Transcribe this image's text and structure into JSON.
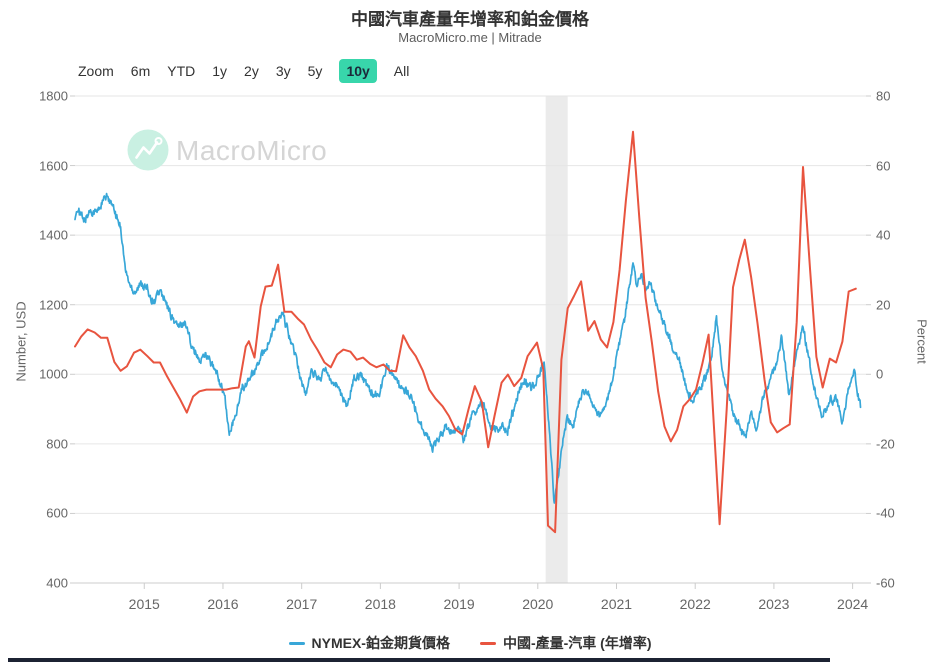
{
  "header": {
    "title": "中國汽車產量年增率和鉑金價格",
    "subtitle": "MacroMicro.me | Mitrade"
  },
  "toolbar": {
    "zoom_label": "Zoom",
    "ranges": [
      "6m",
      "YTD",
      "1y",
      "2y",
      "3y",
      "5y",
      "10y",
      "All"
    ],
    "active_range": "10y"
  },
  "watermark": {
    "text": "MacroMicro",
    "icon": "macromicro-logo"
  },
  "colors": {
    "active_range_bg": "#38d6ab",
    "watermark_circle": "#c9f0e2",
    "watermark_text": "#d5d5d5",
    "grid": "#e6e6e6",
    "tick": "#cccccc",
    "axis_text": "#666666",
    "plot_band": "#ebebeb",
    "footer_bar": "#1c2333"
  },
  "chart_data": {
    "type": "line",
    "title": "中國汽車產量年增率和鉑金價格",
    "subtitle": "MacroMicro.me | Mitrade",
    "grid": true,
    "legend_position": "bottom",
    "x_axis": {
      "min": 2014.12,
      "max": 2024.17,
      "ticks": [
        2015,
        2016,
        2017,
        2018,
        2019,
        2020,
        2021,
        2022,
        2023,
        2024
      ]
    },
    "left_axis": {
      "title": "Number, USD",
      "min": 400,
      "max": 1800,
      "tick_step": 200
    },
    "right_axis": {
      "title": "Percent",
      "min": -60,
      "max": 80,
      "tick_step": 20
    },
    "plot_band": {
      "from": 2020.1,
      "to": 2020.38,
      "note": "recession shading"
    },
    "series": [
      {
        "name": "NYMEX-鉑金期貨價格",
        "color": "#38a7d8",
        "axis": "left",
        "style": "noisy-daily",
        "points": [
          [
            2014.12,
            1445
          ],
          [
            2014.17,
            1477
          ],
          [
            2014.23,
            1438
          ],
          [
            2014.31,
            1470
          ],
          [
            2014.4,
            1466
          ],
          [
            2014.48,
            1500
          ],
          [
            2014.54,
            1510
          ],
          [
            2014.62,
            1468
          ],
          [
            2014.7,
            1424
          ],
          [
            2014.76,
            1300
          ],
          [
            2014.82,
            1255
          ],
          [
            2014.88,
            1238
          ],
          [
            2014.97,
            1262
          ],
          [
            2015.05,
            1238
          ],
          [
            2015.12,
            1205
          ],
          [
            2015.2,
            1242
          ],
          [
            2015.28,
            1200
          ],
          [
            2015.36,
            1160
          ],
          [
            2015.44,
            1135
          ],
          [
            2015.52,
            1150
          ],
          [
            2015.61,
            1080
          ],
          [
            2015.7,
            1035
          ],
          [
            2015.78,
            1062
          ],
          [
            2015.87,
            1022
          ],
          [
            2015.95,
            985
          ],
          [
            2016.02,
            940
          ],
          [
            2016.08,
            825
          ],
          [
            2016.16,
            880
          ],
          [
            2016.24,
            956
          ],
          [
            2016.33,
            988
          ],
          [
            2016.42,
            1014
          ],
          [
            2016.51,
            1062
          ],
          [
            2016.6,
            1100
          ],
          [
            2016.68,
            1150
          ],
          [
            2016.76,
            1172
          ],
          [
            2016.83,
            1118
          ],
          [
            2016.9,
            1070
          ],
          [
            2016.97,
            1005
          ],
          [
            2017.05,
            940
          ],
          [
            2017.13,
            1014
          ],
          [
            2017.22,
            985
          ],
          [
            2017.31,
            1014
          ],
          [
            2017.4,
            976
          ],
          [
            2017.49,
            956
          ],
          [
            2017.57,
            908
          ],
          [
            2017.66,
            985
          ],
          [
            2017.75,
            1005
          ],
          [
            2017.84,
            966
          ],
          [
            2017.92,
            940
          ],
          [
            2018.0,
            952
          ],
          [
            2018.08,
            1030
          ],
          [
            2018.17,
            995
          ],
          [
            2018.25,
            962
          ],
          [
            2018.33,
            955
          ],
          [
            2018.42,
            918
          ],
          [
            2018.5,
            862
          ],
          [
            2018.58,
            832
          ],
          [
            2018.67,
            788
          ],
          [
            2018.75,
            820
          ],
          [
            2018.83,
            850
          ],
          [
            2018.91,
            832
          ],
          [
            2018.99,
            850
          ],
          [
            2019.06,
            815
          ],
          [
            2019.15,
            870
          ],
          [
            2019.23,
            900
          ],
          [
            2019.31,
            918
          ],
          [
            2019.38,
            860
          ],
          [
            2019.46,
            835
          ],
          [
            2019.54,
            850
          ],
          [
            2019.61,
            833
          ],
          [
            2019.69,
            898
          ],
          [
            2019.77,
            962
          ],
          [
            2019.85,
            985
          ],
          [
            2019.92,
            956
          ],
          [
            2020.0,
            995
          ],
          [
            2020.08,
            1035
          ],
          [
            2020.14,
            862
          ],
          [
            2020.21,
            630
          ],
          [
            2020.29,
            762
          ],
          [
            2020.37,
            878
          ],
          [
            2020.45,
            850
          ],
          [
            2020.53,
            928
          ],
          [
            2020.61,
            956
          ],
          [
            2020.7,
            906
          ],
          [
            2020.78,
            878
          ],
          [
            2020.86,
            907
          ],
          [
            2020.94,
            976
          ],
          [
            2021.02,
            1070
          ],
          [
            2021.1,
            1150
          ],
          [
            2021.16,
            1250
          ],
          [
            2021.21,
            1320
          ],
          [
            2021.26,
            1252
          ],
          [
            2021.31,
            1286
          ],
          [
            2021.37,
            1240
          ],
          [
            2021.44,
            1262
          ],
          [
            2021.51,
            1200
          ],
          [
            2021.58,
            1160
          ],
          [
            2021.65,
            1120
          ],
          [
            2021.73,
            1062
          ],
          [
            2021.81,
            1033
          ],
          [
            2021.89,
            956
          ],
          [
            2021.97,
            918
          ],
          [
            2022.05,
            958
          ],
          [
            2022.13,
            988
          ],
          [
            2022.2,
            1040
          ],
          [
            2022.27,
            1168
          ],
          [
            2022.34,
            1015
          ],
          [
            2022.42,
            938
          ],
          [
            2022.5,
            880
          ],
          [
            2022.58,
            840
          ],
          [
            2022.64,
            826
          ],
          [
            2022.71,
            892
          ],
          [
            2022.78,
            840
          ],
          [
            2022.86,
            928
          ],
          [
            2022.94,
            975
          ],
          [
            2023.02,
            1022
          ],
          [
            2023.1,
            1108
          ],
          [
            2023.19,
            942
          ],
          [
            2023.28,
            1052
          ],
          [
            2023.37,
            1136
          ],
          [
            2023.46,
            1022
          ],
          [
            2023.54,
            930
          ],
          [
            2023.62,
            878
          ],
          [
            2023.71,
            920
          ],
          [
            2023.79,
            930
          ],
          [
            2023.87,
            864
          ],
          [
            2023.95,
            958
          ],
          [
            2024.02,
            1014
          ],
          [
            2024.1,
            905
          ]
        ]
      },
      {
        "name": "中國-產量-汽車 (年增率)",
        "color": "#e8543f",
        "axis": "right",
        "style": "monthly",
        "points": [
          [
            2014.12,
            8.0
          ],
          [
            2014.2,
            10.9
          ],
          [
            2014.28,
            12.9
          ],
          [
            2014.37,
            12.0
          ],
          [
            2014.45,
            10.5
          ],
          [
            2014.53,
            10.5
          ],
          [
            2014.62,
            3.5
          ],
          [
            2014.7,
            1.0
          ],
          [
            2014.78,
            2.3
          ],
          [
            2014.87,
            6.2
          ],
          [
            2014.95,
            7.1
          ],
          [
            2015.04,
            5.2
          ],
          [
            2015.12,
            3.4
          ],
          [
            2015.2,
            3.4
          ],
          [
            2015.29,
            -0.6
          ],
          [
            2015.37,
            -3.8
          ],
          [
            2015.45,
            -7.0
          ],
          [
            2015.54,
            -11.0
          ],
          [
            2015.62,
            -6.4
          ],
          [
            2015.7,
            -4.9
          ],
          [
            2015.79,
            -4.4
          ],
          [
            2015.87,
            -4.4
          ],
          [
            2015.95,
            -4.4
          ],
          [
            2016.04,
            -4.4
          ],
          [
            2016.12,
            -4.0
          ],
          [
            2016.2,
            -3.8
          ],
          [
            2016.29,
            8.0
          ],
          [
            2016.33,
            9.5
          ],
          [
            2016.4,
            4.8
          ],
          [
            2016.48,
            19.5
          ],
          [
            2016.54,
            25.2
          ],
          [
            2016.62,
            25.5
          ],
          [
            2016.7,
            31.5
          ],
          [
            2016.78,
            18.0
          ],
          [
            2016.87,
            18.0
          ],
          [
            2016.95,
            16.0
          ],
          [
            2017.03,
            14.3
          ],
          [
            2017.12,
            10.0
          ],
          [
            2017.2,
            7.1
          ],
          [
            2017.29,
            3.4
          ],
          [
            2017.37,
            2.0
          ],
          [
            2017.45,
            5.7
          ],
          [
            2017.53,
            7.1
          ],
          [
            2017.62,
            6.5
          ],
          [
            2017.7,
            4.2
          ],
          [
            2017.78,
            4.8
          ],
          [
            2017.87,
            3.0
          ],
          [
            2017.95,
            2.0
          ],
          [
            2018.04,
            2.8
          ],
          [
            2018.12,
            1.0
          ],
          [
            2018.2,
            0.9
          ],
          [
            2018.29,
            11.2
          ],
          [
            2018.37,
            7.7
          ],
          [
            2018.45,
            5.2
          ],
          [
            2018.54,
            1.0
          ],
          [
            2018.62,
            -4.4
          ],
          [
            2018.7,
            -7.0
          ],
          [
            2018.79,
            -9.2
          ],
          [
            2018.87,
            -12.0
          ],
          [
            2018.95,
            -15.8
          ],
          [
            2019.04,
            -17.3
          ],
          [
            2019.12,
            -10.1
          ],
          [
            2019.2,
            -3.4
          ],
          [
            2019.29,
            -8.0
          ],
          [
            2019.37,
            -21.0
          ],
          [
            2019.45,
            -12.0
          ],
          [
            2019.54,
            -2.4
          ],
          [
            2019.62,
            -0.1
          ],
          [
            2019.7,
            -3.4
          ],
          [
            2019.79,
            -1.0
          ],
          [
            2019.87,
            5.2
          ],
          [
            2019.99,
            9.1
          ],
          [
            2020.07,
            1.4
          ],
          [
            2020.13,
            -43.5
          ],
          [
            2020.22,
            -45.4
          ],
          [
            2020.3,
            4.2
          ],
          [
            2020.38,
            19.0
          ],
          [
            2020.46,
            22.5
          ],
          [
            2020.55,
            26.7
          ],
          [
            2020.64,
            12.5
          ],
          [
            2020.72,
            15.3
          ],
          [
            2020.8,
            10.0
          ],
          [
            2020.88,
            7.7
          ],
          [
            2020.96,
            15.0
          ],
          [
            2021.04,
            30.0
          ],
          [
            2021.12,
            50.0
          ],
          [
            2021.21,
            69.7
          ],
          [
            2021.29,
            45.0
          ],
          [
            2021.37,
            22.0
          ],
          [
            2021.45,
            9.1
          ],
          [
            2021.53,
            -5.0
          ],
          [
            2021.61,
            -15.0
          ],
          [
            2021.69,
            -19.3
          ],
          [
            2021.77,
            -16.0
          ],
          [
            2021.85,
            -9.2
          ],
          [
            2021.93,
            -7.2
          ],
          [
            2022.01,
            -4.4
          ],
          [
            2022.09,
            3.0
          ],
          [
            2022.17,
            11.4
          ],
          [
            2022.31,
            -43.1
          ],
          [
            2022.4,
            -10.0
          ],
          [
            2022.48,
            25.0
          ],
          [
            2022.56,
            33.0
          ],
          [
            2022.63,
            38.7
          ],
          [
            2022.71,
            28.0
          ],
          [
            2022.79,
            14.9
          ],
          [
            2022.88,
            -1.5
          ],
          [
            2022.96,
            -13.8
          ],
          [
            2023.04,
            -16.7
          ],
          [
            2023.12,
            -15.5
          ],
          [
            2023.2,
            -14.4
          ],
          [
            2023.29,
            15.0
          ],
          [
            2023.37,
            59.6
          ],
          [
            2023.46,
            30.0
          ],
          [
            2023.54,
            5.0
          ],
          [
            2023.62,
            -3.8
          ],
          [
            2023.71,
            4.5
          ],
          [
            2023.79,
            3.4
          ],
          [
            2023.87,
            9.4
          ],
          [
            2023.95,
            23.8
          ],
          [
            2024.04,
            24.6
          ]
        ]
      }
    ]
  }
}
